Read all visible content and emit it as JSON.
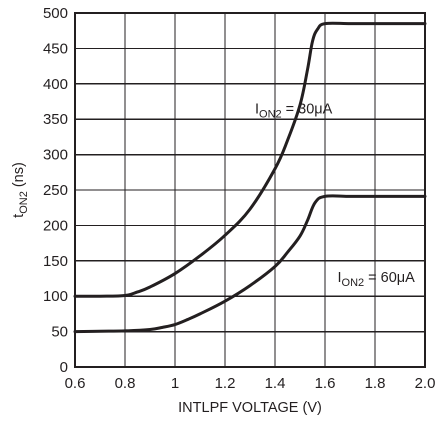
{
  "chart_data": {
    "type": "line",
    "title": "",
    "xlabel": "INTLPF VOLTAGE (V)",
    "ylabel": {
      "main": "t",
      "sub": "ON2",
      "suffix": " (ns)"
    },
    "xlim": [
      0.6,
      2.0
    ],
    "ylim": [
      0,
      500
    ],
    "x_ticks": [
      0.6,
      0.8,
      1,
      1.2,
      1.4,
      1.6,
      1.8,
      2.0
    ],
    "x_tick_labels": [
      "0.6",
      "0.8",
      "1",
      "1.2",
      "1.4",
      "1.6",
      "1.8",
      "2.0"
    ],
    "y_ticks": [
      0,
      50,
      100,
      150,
      200,
      250,
      300,
      350,
      400,
      450,
      500
    ],
    "y_tick_labels": [
      "0",
      "50",
      "100",
      "150",
      "200",
      "250",
      "300",
      "350",
      "400",
      "450",
      "500"
    ],
    "grid": true,
    "legend": "none",
    "series": [
      {
        "name": {
          "main": "I",
          "sub": "ON2",
          "suffix": " = 30μA"
        },
        "x": [
          0.6,
          0.7,
          0.8,
          0.85,
          0.9,
          1.0,
          1.1,
          1.2,
          1.3,
          1.4,
          1.45,
          1.5,
          1.53,
          1.55,
          1.57,
          1.6,
          1.7,
          1.8,
          1.9,
          2.0
        ],
        "y": [
          100,
          100,
          101,
          106,
          113,
          132,
          157,
          186,
          223,
          280,
          320,
          370,
          420,
          460,
          477,
          485,
          485,
          485,
          485,
          485
        ]
      },
      {
        "name": {
          "main": "I",
          "sub": "ON2",
          "suffix": " = 60μA"
        },
        "x": [
          0.6,
          0.7,
          0.8,
          0.9,
          0.95,
          1.0,
          1.05,
          1.1,
          1.2,
          1.3,
          1.4,
          1.45,
          1.5,
          1.53,
          1.56,
          1.6,
          1.7,
          1.8,
          1.9,
          2.0
        ],
        "y": [
          50,
          50.5,
          51,
          53,
          56,
          60,
          67,
          75,
          93,
          115,
          142,
          162,
          185,
          207,
          232,
          241,
          241,
          241,
          241,
          241
        ]
      }
    ],
    "annotations": [
      {
        "series": 0,
        "x": 1.32,
        "y": 358
      },
      {
        "series": 1,
        "x": 1.65,
        "y": 120
      }
    ]
  }
}
